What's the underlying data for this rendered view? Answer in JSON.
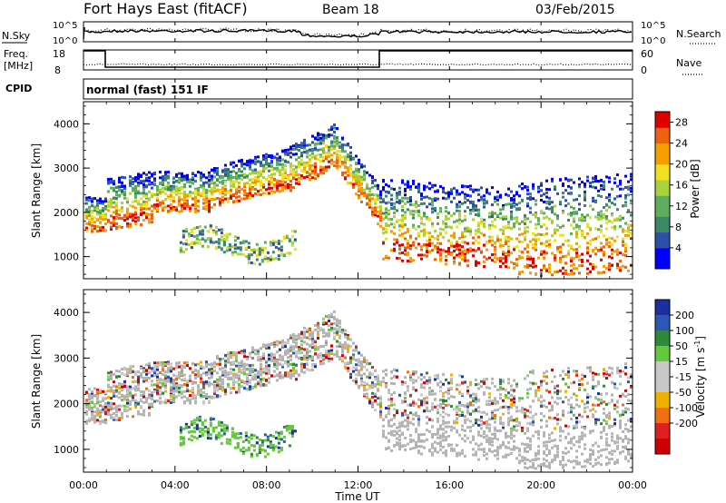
{
  "header": {
    "station": "Fort Hays East (fitACF)",
    "beam": "Beam 18",
    "date": "03/Feb/2015"
  },
  "status_panels": {
    "nsky_label": "N.Sky",
    "nsky_ticks": [
      "10^5",
      "10^0"
    ],
    "nsearch_label": "N.Search",
    "nsearch_ticks": [
      "10^5",
      "10^0"
    ],
    "freq_label_top": "Freq.",
    "freq_label_bottom": "[MHz]",
    "freq_ticks": [
      "18",
      "8"
    ],
    "nave_label": "Nave",
    "nave_ticks": [
      "60",
      "0"
    ],
    "cpid_label": "CPID",
    "cpid_value": "normal (fast) 151 IF"
  },
  "colors": {
    "power_scale": [
      "#0000ff",
      "#2f4fa8",
      "#3a8a6a",
      "#5fae5f",
      "#a8d43a",
      "#f0e020",
      "#f5a000",
      "#ef6010",
      "#e00000"
    ],
    "velocity_scale": [
      "#1c2fa0",
      "#2d57b4",
      "#2c8a3a",
      "#63c83a",
      "#c8c8c8",
      "#c8c8c8",
      "#f0b000",
      "#f07010",
      "#e02020",
      "#d00000"
    ],
    "ground_scatter": "#b4b4b4"
  },
  "chart_data": [
    {
      "type": "heatmap",
      "name": "power",
      "ylabel": "Slant Range [km]",
      "yticks": [
        "1000",
        "2000",
        "3000",
        "4000"
      ],
      "ylim": [
        500,
        4500
      ],
      "xlim": [
        0,
        24
      ],
      "colorbar": {
        "label": "Power [dB]",
        "ticks": [
          "4",
          "8",
          "12",
          "16",
          "20",
          "24",
          "28"
        ],
        "range": [
          0,
          30
        ]
      }
    },
    {
      "type": "heatmap",
      "name": "velocity",
      "ylabel": "Slant Range [km]",
      "yticks": [
        "1000",
        "2000",
        "3000",
        "4000"
      ],
      "ylim": [
        500,
        4500
      ],
      "xlim": [
        0,
        24
      ],
      "colorbar": {
        "label_main": "Velocity [m s",
        "label_sup": "-1",
        "label_end": "]",
        "ticks": [
          "200",
          "100",
          "50",
          "15",
          "-15",
          "-50",
          "-100",
          "-200"
        ]
      }
    }
  ],
  "x_axis": {
    "ticks": [
      "00:00",
      "04:00",
      "08:00",
      "12:00",
      "16:00",
      "20:00",
      "00:00"
    ],
    "label": "Time UT"
  }
}
